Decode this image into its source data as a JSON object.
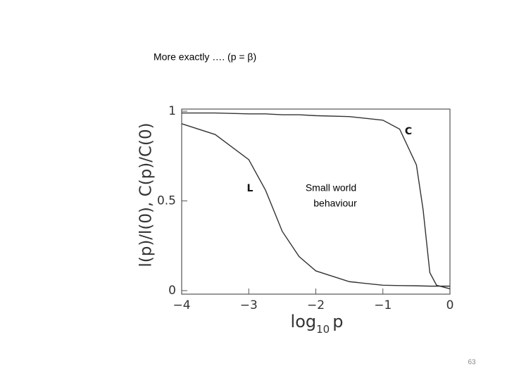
{
  "slide": {
    "title": "More exactly …. (p = β)",
    "page_number": "63"
  },
  "chart_data": {
    "type": "line",
    "ylabel": "l(p)/l(0), C(p)/C(0)",
    "xlabel": {
      "base": "log",
      "subscript": "10",
      "variable": "p"
    },
    "annotation": [
      "Small world",
      "behaviour"
    ],
    "x": [
      -4,
      -3.5,
      -3,
      -2.75,
      -2.5,
      -2.25,
      -2,
      -1.5,
      -1,
      -0.75,
      -0.5,
      -0.4,
      -0.3,
      -0.2,
      0
    ],
    "series": [
      {
        "name": "L",
        "color": "#333333",
        "values": [
          0.93,
          0.87,
          0.73,
          0.56,
          0.33,
          0.19,
          0.11,
          0.05,
          0.03,
          0.028,
          0.027,
          0.026,
          0.025,
          0.025,
          0.025
        ]
      },
      {
        "name": "C",
        "color": "#333333",
        "values": [
          0.99,
          0.99,
          0.985,
          0.985,
          0.98,
          0.98,
          0.975,
          0.97,
          0.95,
          0.9,
          0.7,
          0.45,
          0.1,
          0.03,
          0.01
        ]
      }
    ],
    "xlim": [
      -4,
      0
    ],
    "ylim": [
      0,
      1
    ],
    "xticks": [
      {
        "value": -4,
        "label": "−4"
      },
      {
        "value": -3,
        "label": "−3"
      },
      {
        "value": -2,
        "label": "−2"
      },
      {
        "value": -1,
        "label": "−1"
      },
      0
    ],
    "yticks": [
      0,
      0.5,
      1
    ]
  }
}
